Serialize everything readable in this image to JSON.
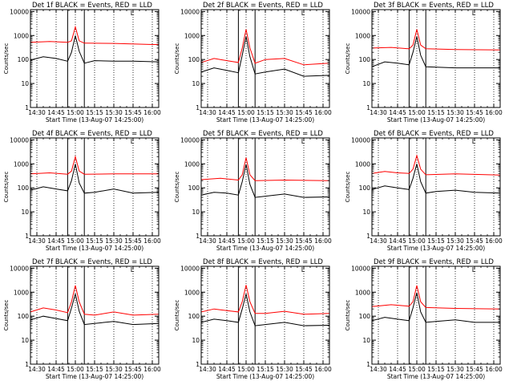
{
  "colors": {
    "events": "#000000",
    "lld": "#ff0000",
    "axes": "#000000",
    "background": "#ffffff"
  },
  "common": {
    "ylabel": "Counts/sec",
    "xlabel": "Start Time (13-Aug-07 14:25:00)",
    "title_suffix": "BLACK = Events, RED = LLD",
    "x_ticks": [
      "14:30",
      "14:45",
      "15:00",
      "15:15",
      "15:30",
      "15:45",
      "16:00"
    ],
    "y_ticks": [
      "1",
      "10",
      "100",
      "1000",
      "10000"
    ],
    "corner_mark": "L"
  },
  "chart_data": [
    {
      "type": "line",
      "title": "Det 1f BLACK = Events, RED = LLD",
      "y_scale": "log",
      "ylim": [
        1,
        12000
      ],
      "xlim": [
        "14:25",
        "16:05"
      ],
      "x_tick_labels": [
        "14:30",
        "14:45",
        "15:00",
        "15:15",
        "15:30",
        "15:45",
        "16:00"
      ],
      "y_tick_labels": [
        "1",
        "10",
        "100",
        "1000",
        "10000"
      ],
      "xlabel": "Start Time (13-Aug-07 14:25:00)",
      "ylabel": "Counts/sec",
      "vertical_dotted_lines": [
        "14:30",
        "14:45",
        "15:00",
        "15:15",
        "15:30",
        "15:45",
        "16:00"
      ],
      "vertical_solid_lines": [
        "14:54",
        "15:07"
      ],
      "series": [
        {
          "color": "red",
          "x": [
            "14:25",
            "14:40",
            "14:54",
            "14:57",
            "15:00",
            "15:03",
            "15:07",
            "15:30",
            "16:00",
            "16:05"
          ],
          "values": [
            520,
            560,
            520,
            600,
            2300,
            600,
            480,
            470,
            420,
            420
          ]
        },
        {
          "color": "black",
          "x": [
            "14:25",
            "14:35",
            "14:45",
            "14:54",
            "14:57",
            "15:00",
            "15:03",
            "15:07",
            "15:15",
            "15:30",
            "15:45",
            "16:05"
          ],
          "values": [
            95,
            130,
            110,
            85,
            200,
            1000,
            220,
            70,
            90,
            85,
            85,
            80
          ]
        }
      ]
    },
    {
      "type": "line",
      "title": "Det 2f BLACK = Events, RED = LLD",
      "y_scale": "log",
      "ylim": [
        1,
        12000
      ],
      "xlim": [
        "14:25",
        "16:05"
      ],
      "x_tick_labels": [
        "14:30",
        "14:45",
        "15:00",
        "15:15",
        "15:30",
        "15:45",
        "16:00"
      ],
      "y_tick_labels": [
        "1",
        "10",
        "100",
        "1000",
        "10000"
      ],
      "xlabel": "Start Time (13-Aug-07 14:25:00)",
      "ylabel": "Counts/sec",
      "vertical_dotted_lines": [
        "14:30",
        "14:45",
        "15:00",
        "15:15",
        "15:30",
        "15:45",
        "16:00"
      ],
      "vertical_solid_lines": [
        "14:54",
        "15:07"
      ],
      "series": [
        {
          "color": "red",
          "x": [
            "14:25",
            "14:35",
            "14:45",
            "14:54",
            "14:57",
            "15:00",
            "15:03",
            "15:07",
            "15:15",
            "15:30",
            "15:45",
            "16:05"
          ],
          "values": [
            75,
            110,
            90,
            75,
            300,
            1800,
            300,
            70,
            100,
            110,
            60,
            70
          ]
        },
        {
          "color": "black",
          "x": [
            "14:25",
            "14:35",
            "14:45",
            "14:54",
            "14:57",
            "15:00",
            "15:03",
            "15:07",
            "15:15",
            "15:30",
            "15:45",
            "16:05"
          ],
          "values": [
            30,
            45,
            35,
            28,
            150,
            900,
            130,
            25,
            30,
            40,
            20,
            22
          ]
        }
      ]
    },
    {
      "type": "line",
      "title": "Det 3f BLACK = Events, RED = LLD",
      "y_scale": "log",
      "ylim": [
        1,
        12000
      ],
      "xlim": [
        "14:25",
        "16:05"
      ],
      "x_tick_labels": [
        "14:30",
        "14:45",
        "15:00",
        "15:15",
        "15:30",
        "15:45",
        "16:00"
      ],
      "y_tick_labels": [
        "1",
        "10",
        "100",
        "1000",
        "10000"
      ],
      "xlabel": "Start Time (13-Aug-07 14:25:00)",
      "ylabel": "Counts/sec",
      "vertical_dotted_lines": [
        "14:30",
        "14:45",
        "15:00",
        "15:15",
        "15:30",
        "15:45",
        "16:00"
      ],
      "vertical_solid_lines": [
        "14:54",
        "15:07"
      ],
      "series": [
        {
          "color": "red",
          "x": [
            "14:25",
            "14:40",
            "14:54",
            "14:57",
            "15:00",
            "15:03",
            "15:07",
            "15:30",
            "16:05"
          ],
          "values": [
            300,
            320,
            280,
            400,
            1800,
            400,
            280,
            260,
            250
          ]
        },
        {
          "color": "black",
          "x": [
            "14:25",
            "14:35",
            "14:45",
            "14:54",
            "14:57",
            "15:00",
            "15:03",
            "15:07",
            "15:30",
            "16:05"
          ],
          "values": [
            50,
            80,
            70,
            60,
            200,
            900,
            150,
            50,
            45,
            45
          ]
        }
      ]
    },
    {
      "type": "line",
      "title": "Det 4f BLACK = Events, RED = LLD",
      "y_scale": "log",
      "ylim": [
        1,
        12000
      ],
      "xlim": [
        "14:25",
        "16:05"
      ],
      "x_tick_labels": [
        "14:30",
        "14:45",
        "15:00",
        "15:15",
        "15:30",
        "15:45",
        "16:00"
      ],
      "y_tick_labels": [
        "1",
        "10",
        "100",
        "1000",
        "10000"
      ],
      "xlabel": "Start Time (13-Aug-07 14:25:00)",
      "ylabel": "Counts/sec",
      "vertical_dotted_lines": [
        "14:30",
        "14:45",
        "15:00",
        "15:15",
        "15:30",
        "15:45",
        "16:00"
      ],
      "vertical_solid_lines": [
        "14:54",
        "15:07"
      ],
      "series": [
        {
          "color": "red",
          "x": [
            "14:25",
            "14:40",
            "14:54",
            "14:57",
            "15:00",
            "15:03",
            "15:07",
            "15:30",
            "16:05"
          ],
          "values": [
            380,
            420,
            370,
            500,
            2000,
            500,
            370,
            380,
            380
          ]
        },
        {
          "color": "black",
          "x": [
            "14:25",
            "14:35",
            "14:45",
            "14:54",
            "14:57",
            "15:00",
            "15:03",
            "15:07",
            "15:15",
            "15:30",
            "15:45",
            "16:05"
          ],
          "values": [
            80,
            110,
            90,
            75,
            200,
            1000,
            160,
            60,
            65,
            90,
            60,
            65
          ]
        }
      ]
    },
    {
      "type": "line",
      "title": "Det 5f BLACK = Events, RED = LLD",
      "y_scale": "log",
      "ylim": [
        1,
        12000
      ],
      "xlim": [
        "14:25",
        "16:05"
      ],
      "x_tick_labels": [
        "14:30",
        "14:45",
        "15:00",
        "15:15",
        "15:30",
        "15:45",
        "16:00"
      ],
      "y_tick_labels": [
        "1",
        "10",
        "100",
        "1000",
        "10000"
      ],
      "xlabel": "Start Time (13-Aug-07 14:25:00)",
      "ylabel": "Counts/sec",
      "vertical_dotted_lines": [
        "14:30",
        "14:45",
        "15:00",
        "15:15",
        "15:30",
        "15:45",
        "16:00"
      ],
      "vertical_solid_lines": [
        "14:54",
        "15:07"
      ],
      "series": [
        {
          "color": "red",
          "x": [
            "14:25",
            "14:40",
            "14:54",
            "14:57",
            "15:00",
            "15:03",
            "15:07",
            "15:30",
            "16:05"
          ],
          "values": [
            220,
            250,
            210,
            350,
            1800,
            350,
            200,
            210,
            200
          ]
        },
        {
          "color": "black",
          "x": [
            "14:25",
            "14:35",
            "14:45",
            "14:54",
            "14:57",
            "15:00",
            "15:03",
            "15:07",
            "15:15",
            "15:30",
            "15:45",
            "16:05"
          ],
          "values": [
            50,
            65,
            60,
            50,
            180,
            950,
            140,
            40,
            45,
            55,
            40,
            42
          ]
        }
      ]
    },
    {
      "type": "line",
      "title": "Det 6f BLACK = Events, RED = LLD",
      "y_scale": "log",
      "ylim": [
        1,
        12000
      ],
      "xlim": [
        "14:25",
        "16:05"
      ],
      "x_tick_labels": [
        "14:30",
        "14:45",
        "15:00",
        "15:15",
        "15:30",
        "15:45",
        "16:00"
      ],
      "y_tick_labels": [
        "1",
        "10",
        "100",
        "1000",
        "10000"
      ],
      "xlabel": "Start Time (13-Aug-07 14:25:00)",
      "ylabel": "Counts/sec",
      "vertical_dotted_lines": [
        "14:30",
        "14:45",
        "15:00",
        "15:15",
        "15:30",
        "15:45",
        "16:00"
      ],
      "vertical_solid_lines": [
        "14:54",
        "15:07"
      ],
      "series": [
        {
          "color": "red",
          "x": [
            "14:25",
            "14:35",
            "14:45",
            "14:54",
            "14:57",
            "15:00",
            "15:03",
            "15:07",
            "15:30",
            "16:05"
          ],
          "values": [
            400,
            480,
            420,
            400,
            600,
            2200,
            600,
            350,
            380,
            340
          ]
        },
        {
          "color": "black",
          "x": [
            "14:25",
            "14:35",
            "14:45",
            "14:54",
            "14:57",
            "15:00",
            "15:03",
            "15:07",
            "15:15",
            "15:30",
            "15:45",
            "16:05"
          ],
          "values": [
            85,
            120,
            100,
            85,
            250,
            1000,
            180,
            60,
            70,
            80,
            65,
            60
          ]
        }
      ]
    },
    {
      "type": "line",
      "title": "Det 7f BLACK = Events, RED = LLD",
      "y_scale": "log",
      "ylim": [
        1,
        12000
      ],
      "xlim": [
        "14:25",
        "16:05"
      ],
      "x_tick_labels": [
        "14:30",
        "14:45",
        "15:00",
        "15:15",
        "15:30",
        "15:45",
        "16:00"
      ],
      "y_tick_labels": [
        "1",
        "10",
        "100",
        "1000",
        "10000"
      ],
      "xlabel": "Start Time (13-Aug-07 14:25:00)",
      "ylabel": "Counts/sec",
      "vertical_dotted_lines": [
        "14:30",
        "14:45",
        "15:00",
        "15:15",
        "15:30",
        "15:45",
        "16:00"
      ],
      "vertical_solid_lines": [
        "14:54",
        "15:07"
      ],
      "series": [
        {
          "color": "red",
          "x": [
            "14:25",
            "14:35",
            "14:45",
            "14:54",
            "14:57",
            "15:00",
            "15:03",
            "15:07",
            "15:15",
            "15:30",
            "15:45",
            "16:05"
          ],
          "values": [
            150,
            220,
            180,
            140,
            400,
            1900,
            400,
            120,
            110,
            150,
            110,
            120
          ]
        },
        {
          "color": "black",
          "x": [
            "14:25",
            "14:35",
            "14:45",
            "14:54",
            "14:57",
            "15:00",
            "15:03",
            "15:07",
            "15:15",
            "15:30",
            "15:45",
            "16:05"
          ],
          "values": [
            70,
            100,
            80,
            65,
            220,
            850,
            160,
            45,
            50,
            60,
            45,
            50
          ]
        }
      ]
    },
    {
      "type": "line",
      "title": "Det 8f BLACK = Events, RED = LLD",
      "y_scale": "log",
      "ylim": [
        1,
        12000
      ],
      "xlim": [
        "14:25",
        "16:05"
      ],
      "x_tick_labels": [
        "14:30",
        "14:45",
        "15:00",
        "15:15",
        "15:30",
        "15:45",
        "16:00"
      ],
      "y_tick_labels": [
        "1",
        "10",
        "100",
        "1000",
        "10000"
      ],
      "xlabel": "Start Time (13-Aug-07 14:25:00)",
      "ylabel": "Counts/sec",
      "vertical_dotted_lines": [
        "14:30",
        "14:45",
        "15:00",
        "15:15",
        "15:30",
        "15:45",
        "16:00"
      ],
      "vertical_solid_lines": [
        "14:54",
        "15:07"
      ],
      "series": [
        {
          "color": "red",
          "x": [
            "14:25",
            "14:35",
            "14:45",
            "14:54",
            "14:57",
            "15:00",
            "15:03",
            "15:07",
            "15:15",
            "15:30",
            "15:45",
            "16:05"
          ],
          "values": [
            150,
            200,
            170,
            150,
            400,
            2000,
            400,
            130,
            130,
            160,
            120,
            130
          ]
        },
        {
          "color": "black",
          "x": [
            "14:25",
            "14:35",
            "14:45",
            "14:54",
            "14:57",
            "15:00",
            "15:03",
            "15:07",
            "15:15",
            "15:30",
            "15:45",
            "16:05"
          ],
          "values": [
            55,
            75,
            65,
            55,
            200,
            850,
            150,
            40,
            45,
            55,
            40,
            42
          ]
        }
      ]
    },
    {
      "type": "line",
      "title": "Det 9f BLACK = Events, RED = LLD",
      "y_scale": "log",
      "ylim": [
        1,
        12000
      ],
      "xlim": [
        "14:25",
        "16:05"
      ],
      "x_tick_labels": [
        "14:30",
        "14:45",
        "15:00",
        "15:15",
        "15:30",
        "15:45",
        "16:00"
      ],
      "y_tick_labels": [
        "1",
        "10",
        "100",
        "1000",
        "10000"
      ],
      "xlabel": "Start Time (13-Aug-07 14:25:00)",
      "ylabel": "Counts/sec",
      "vertical_dotted_lines": [
        "14:30",
        "14:45",
        "15:00",
        "15:15",
        "15:30",
        "15:45",
        "16:00"
      ],
      "vertical_solid_lines": [
        "14:54",
        "15:07"
      ],
      "series": [
        {
          "color": "red",
          "x": [
            "14:25",
            "14:40",
            "14:54",
            "14:57",
            "15:00",
            "15:03",
            "15:07",
            "15:30",
            "16:05"
          ],
          "values": [
            250,
            300,
            260,
            400,
            1900,
            400,
            230,
            210,
            200
          ]
        },
        {
          "color": "black",
          "x": [
            "14:25",
            "14:35",
            "14:45",
            "14:54",
            "14:57",
            "15:00",
            "15:03",
            "15:07",
            "15:15",
            "15:30",
            "15:45",
            "16:05"
          ],
          "values": [
            65,
            90,
            75,
            65,
            220,
            950,
            150,
            55,
            60,
            70,
            55,
            55
          ]
        }
      ]
    }
  ]
}
